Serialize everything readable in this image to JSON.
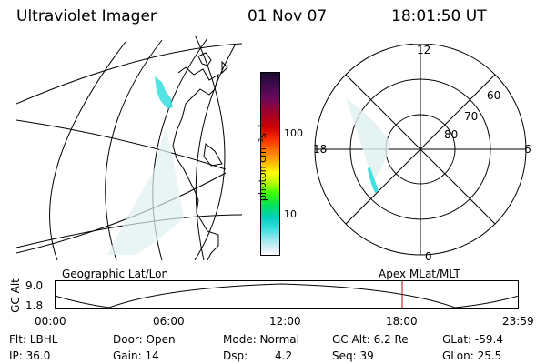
{
  "header": {
    "instrument": "Ultraviolet Imager",
    "date": "01 Nov 07",
    "time": "18:01:50 UT"
  },
  "colorbar": {
    "unit_label": "photon cm⁻²s⁻¹",
    "ticks": [
      "100",
      "10"
    ],
    "colors_top_to_bottom": [
      "#1a0a2e",
      "#3a0a4a",
      "#6a0a5a",
      "#a0002a",
      "#d00000",
      "#ff3000",
      "#ff8000",
      "#ffc000",
      "#ffff00",
      "#c0ff00",
      "#40ff00",
      "#00e060",
      "#00d0c0",
      "#40e0e0",
      "#a0e8f0",
      "#e0f0f8",
      "#ffffff"
    ]
  },
  "polar_plot": {
    "labels": {
      "top": "12",
      "left": "18",
      "right": "6",
      "bottom": "0",
      "ring60": "60",
      "ring70": "70",
      "ring80": "80"
    }
  },
  "map_panel": {
    "left_caption": "Geographic Lat/Lon",
    "right_caption": "Apex MLat/MLT"
  },
  "altitude_strip": {
    "axis_title": "GC Alt",
    "y_top": "9.0",
    "y_bottom": "1.8",
    "x_ticks": [
      "00:00",
      "06:00",
      "12:00",
      "18:00",
      "23:59"
    ],
    "marker_color": "#c00000"
  },
  "status": {
    "row1": {
      "filter": "Flt: LBHL",
      "door": "Door: Open",
      "mode": "Mode: Normal",
      "gc_alt": "GC Alt: 6.2 Re",
      "glat": "GLat: -59.4"
    },
    "row2": {
      "ip": "IP: 36.0",
      "gain": "Gain: 14",
      "dsp_label": "Dsp:",
      "dsp_value": "4.2",
      "seq": "Seq: 39",
      "glon": "GLon: 25.5"
    }
  }
}
